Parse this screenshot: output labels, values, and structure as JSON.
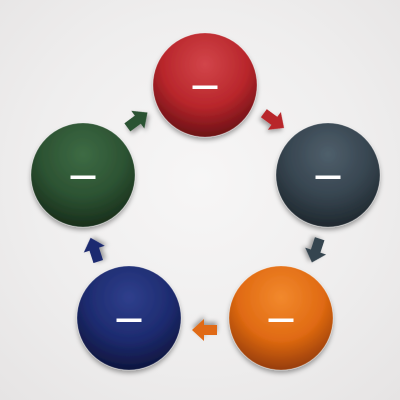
{
  "diagram": {
    "type": "cycle",
    "nodes": [
      {
        "id": "node-top",
        "label": "—",
        "color": "#b8262b",
        "color_light": "#d2454a",
        "color_dark": "#5e0d12"
      },
      {
        "id": "node-right",
        "label": "—",
        "color": "#36444f",
        "color_light": "#4f5f6b",
        "color_dark": "#1b2329"
      },
      {
        "id": "node-bottom-right",
        "label": "—",
        "color": "#e06a12",
        "color_light": "#f2892d",
        "color_dark": "#8a3507"
      },
      {
        "id": "node-bottom-left",
        "label": "—",
        "color": "#1d2b6f",
        "color_light": "#2f3f8c",
        "color_dark": "#0c1236"
      },
      {
        "id": "node-left",
        "label": "—",
        "color": "#2c5232",
        "color_light": "#3d6b44",
        "color_dark": "#152817"
      }
    ],
    "arrows": [
      {
        "from": "node-top",
        "to": "node-right",
        "color": "#b8262b"
      },
      {
        "from": "node-right",
        "to": "node-bottom-right",
        "color": "#36444f"
      },
      {
        "from": "node-bottom-right",
        "to": "node-bottom-left",
        "color": "#e06a12"
      },
      {
        "from": "node-bottom-left",
        "to": "node-left",
        "color": "#1d2b6f"
      },
      {
        "from": "node-left",
        "to": "node-top",
        "color": "#2c5232"
      }
    ]
  }
}
